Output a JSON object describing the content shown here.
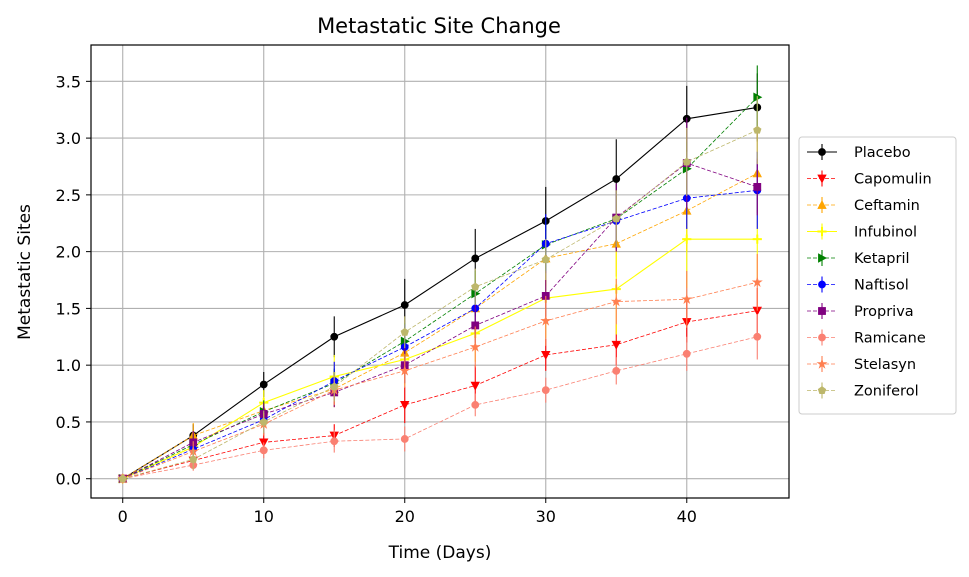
{
  "chart_data": {
    "type": "line",
    "title": "Metastatic Site Change",
    "xlabel": "Time (Days)",
    "ylabel": "Metastatic Sites",
    "xlim": [
      -2.25,
      47.25
    ],
    "ylim": [
      -0.17,
      3.82
    ],
    "xticks": [
      0,
      10,
      20,
      30,
      40
    ],
    "yticks": [
      0.0,
      0.5,
      1.0,
      1.5,
      2.0,
      2.5,
      3.0,
      3.5
    ],
    "grid": true,
    "legend_position": "right",
    "x": [
      0,
      5,
      10,
      15,
      20,
      25,
      30,
      35,
      40,
      45
    ],
    "series": [
      {
        "name": "Placebo",
        "color": "#000000",
        "marker": "circle",
        "style": "solid",
        "values": [
          0,
          0.38,
          0.83,
          1.25,
          1.53,
          1.94,
          2.27,
          2.64,
          3.17,
          3.27
        ],
        "errors": [
          0,
          0.1,
          0.11,
          0.18,
          0.23,
          0.26,
          0.3,
          0.35,
          0.29,
          0.3
        ]
      },
      {
        "name": "Capomulin",
        "color": "#ff0000",
        "marker": "triangle-down",
        "style": "dashed",
        "values": [
          0,
          0.16,
          0.32,
          0.38,
          0.65,
          0.82,
          1.09,
          1.18,
          1.38,
          1.48
        ],
        "errors": [
          0,
          0.07,
          0.09,
          0.1,
          0.16,
          0.18,
          0.14,
          0.18,
          0.18,
          0.2
        ]
      },
      {
        "name": "Ceftamin",
        "color": "#ffa500",
        "marker": "triangle-up",
        "style": "dashed",
        "values": [
          0,
          0.38,
          0.6,
          0.79,
          1.11,
          1.5,
          1.94,
          2.07,
          2.36,
          2.69
        ],
        "errors": [
          0,
          0.11,
          0.12,
          0.16,
          0.18,
          0.19,
          0.24,
          0.29,
          0.36,
          0.35
        ]
      },
      {
        "name": "Infubinol",
        "color": "#ffff00",
        "marker": "plus",
        "style": "solid",
        "values": [
          0,
          0.28,
          0.67,
          0.9,
          1.05,
          1.28,
          1.59,
          1.67,
          2.11,
          2.11
        ],
        "errors": [
          0,
          0.1,
          0.11,
          0.19,
          0.23,
          0.25,
          0.35,
          0.4,
          0.43,
          0.4
        ]
      },
      {
        "name": "Ketapril",
        "color": "#008000",
        "marker": "triangle-right",
        "style": "dashed",
        "values": [
          0,
          0.3,
          0.59,
          0.84,
          1.21,
          1.63,
          2.06,
          2.29,
          2.73,
          3.36
        ],
        "errors": [
          0,
          0.09,
          0.1,
          0.13,
          0.16,
          0.2,
          0.23,
          0.25,
          0.24,
          0.28
        ]
      },
      {
        "name": "Naftisol",
        "color": "#0000ff",
        "marker": "circle",
        "style": "dashed",
        "values": [
          0,
          0.26,
          0.52,
          0.86,
          1.16,
          1.5,
          2.07,
          2.27,
          2.47,
          2.54
        ],
        "errors": [
          0,
          0.09,
          0.12,
          0.17,
          0.2,
          0.22,
          0.26,
          0.25,
          0.27,
          0.34
        ]
      },
      {
        "name": "Propriva",
        "color": "#800080",
        "marker": "square",
        "style": "dashed",
        "values": [
          0,
          0.32,
          0.57,
          0.76,
          1.0,
          1.35,
          1.61,
          2.3,
          2.78,
          2.57
        ],
        "errors": [
          0,
          0.1,
          0.1,
          0.13,
          0.16,
          0.18,
          0.22,
          0.3,
          0.4,
          0.25
        ]
      },
      {
        "name": "Ramicane",
        "color": "#fa8072",
        "marker": "circle",
        "style": "dashed",
        "values": [
          0,
          0.12,
          0.25,
          0.33,
          0.35,
          0.65,
          0.78,
          0.95,
          1.1,
          1.25
        ],
        "errors": [
          0,
          0.05,
          0.07,
          0.1,
          0.11,
          0.1,
          0.11,
          0.12,
          0.15,
          0.2
        ]
      },
      {
        "name": "Stelasyn",
        "color": "#ff7f50",
        "marker": "star",
        "style": "dashed",
        "values": [
          0,
          0.24,
          0.48,
          0.78,
          0.95,
          1.16,
          1.39,
          1.56,
          1.58,
          1.73
        ],
        "errors": [
          0,
          0.09,
          0.1,
          0.13,
          0.15,
          0.18,
          0.22,
          0.2,
          0.25,
          0.25
        ]
      },
      {
        "name": "Zoniferol",
        "color": "#bdb76b",
        "marker": "pentagon",
        "style": "dashed",
        "values": [
          0,
          0.17,
          0.5,
          0.81,
          1.29,
          1.69,
          1.93,
          2.29,
          2.79,
          3.07
        ],
        "errors": [
          0,
          0.09,
          0.1,
          0.13,
          0.14,
          0.16,
          0.18,
          0.25,
          0.3,
          0.3
        ]
      }
    ]
  }
}
